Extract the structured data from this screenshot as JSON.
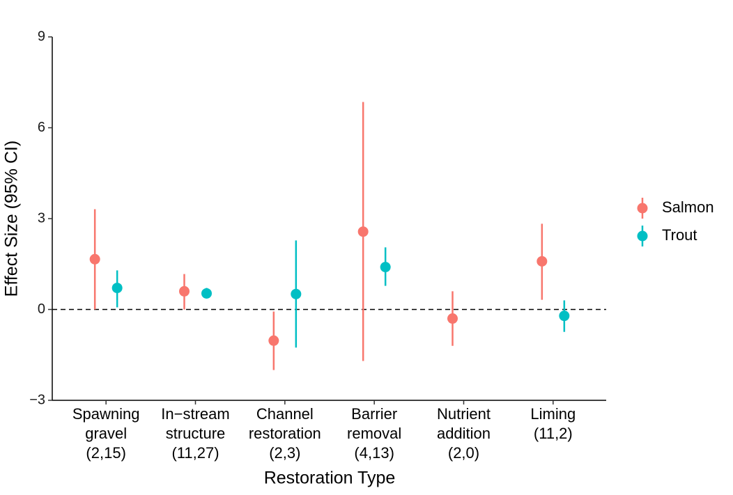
{
  "chart_data": {
    "type": "pointrange",
    "x_label": "Restoration Type",
    "y_label": "Effect Size (95% CI)",
    "categories": [
      [
        "Spawning",
        "gravel",
        "(2,15)"
      ],
      [
        "In−stream",
        "structure",
        "(11,27)"
      ],
      [
        "Channel",
        "restoration",
        "(2,3)"
      ],
      [
        "Barrier",
        "removal",
        "(4,13)"
      ],
      [
        "Nutrient",
        "addition",
        "(2,0)"
      ],
      [
        "Liming",
        "(11,2)"
      ]
    ],
    "series": [
      {
        "name": "Salmon",
        "color": "#F8766D",
        "values": [
          1.66,
          0.6,
          -1.03,
          2.57,
          -0.3,
          1.59
        ],
        "lower": [
          0.0,
          0.0,
          -2.0,
          -1.7,
          -1.2,
          0.32
        ],
        "upper": [
          3.31,
          1.17,
          -0.07,
          6.85,
          0.6,
          2.83
        ]
      },
      {
        "name": "Trout",
        "color": "#00BFC4",
        "values": [
          0.71,
          0.53,
          0.51,
          1.4,
          null,
          -0.21
        ],
        "lower": [
          0.07,
          0.37,
          -1.26,
          0.78,
          null,
          -0.74
        ],
        "upper": [
          1.29,
          0.71,
          2.28,
          2.05,
          null,
          0.3
        ]
      }
    ],
    "ylim": [
      -3,
      9
    ],
    "yticks": [
      {
        "value": -3,
        "label": "−3"
      },
      0,
      3,
      6,
      9
    ],
    "hline": 0,
    "legend": "right"
  }
}
